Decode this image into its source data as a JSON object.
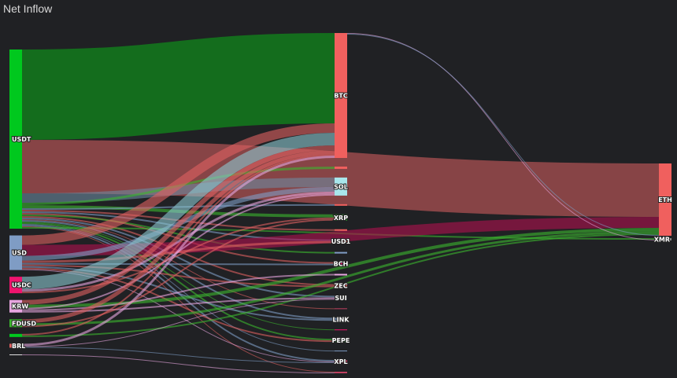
{
  "title": "Net Inflow",
  "chart_data": {
    "type": "sankey",
    "title": "Net Inflow",
    "nodes": [
      {
        "id": "USDT",
        "label": "USDT",
        "col": 0,
        "color": "#00c81e"
      },
      {
        "id": "USD",
        "label": "USD",
        "col": 0,
        "color": "#7f9cc4"
      },
      {
        "id": "USDC",
        "label": "USDC",
        "col": 0,
        "color": "#f0146e"
      },
      {
        "id": "KRW",
        "label": "KRW",
        "col": 0,
        "color": "#e8a6e0"
      },
      {
        "id": "FDUSD",
        "label": "FDUSD",
        "col": 0,
        "color": "#3cb82e"
      },
      {
        "id": "G1",
        "label": "",
        "col": 0,
        "color": "#00c81e"
      },
      {
        "id": "BRL",
        "label": "BRL",
        "col": 0,
        "color": "#e06060"
      },
      {
        "id": "W1",
        "label": "",
        "col": 0,
        "color": "#e0e0e0"
      },
      {
        "id": "BTC",
        "label": "BTC",
        "col": 1,
        "color": "#f0605e"
      },
      {
        "id": "M1",
        "label": "",
        "col": 1,
        "color": "#f0605e"
      },
      {
        "id": "SOL",
        "label": "SOL",
        "col": 1,
        "color": "#a8e6ec"
      },
      {
        "id": "M2",
        "label": "",
        "col": 1,
        "color": "#f0605e"
      },
      {
        "id": "XRP",
        "label": "XRP",
        "col": 1,
        "color": "#2d8a2d"
      },
      {
        "id": "M3",
        "label": "",
        "col": 1,
        "color": "#f0605e"
      },
      {
        "id": "USD1",
        "label": "USD1",
        "col": 1,
        "color": "#f0605e"
      },
      {
        "id": "M4",
        "label": "",
        "col": 1,
        "color": "#7f9cc4"
      },
      {
        "id": "BCH",
        "label": "BCH",
        "col": 1,
        "color": "#f0146e"
      },
      {
        "id": "M5",
        "label": "",
        "col": 1,
        "color": "#e8a6e0"
      },
      {
        "id": "ZEC",
        "label": "ZEC",
        "col": 1,
        "color": "#f0605e"
      },
      {
        "id": "SUI",
        "label": "SUI",
        "col": 1,
        "color": "#7f9cc4"
      },
      {
        "id": "M6",
        "label": "",
        "col": 1,
        "color": "#c04060"
      },
      {
        "id": "LINK",
        "label": "LINK",
        "col": 1,
        "color": "#7f9cc4"
      },
      {
        "id": "M7",
        "label": "",
        "col": 1,
        "color": "#f0146e"
      },
      {
        "id": "PEPE",
        "label": "PEPE",
        "col": 1,
        "color": "#2d8a2d"
      },
      {
        "id": "M8",
        "label": "",
        "col": 1,
        "color": "#7f9cc4"
      },
      {
        "id": "XPL",
        "label": "XPL",
        "col": 1,
        "color": "#c04060"
      },
      {
        "id": "M9",
        "label": "",
        "col": 1,
        "color": "#c04060"
      },
      {
        "id": "ETH",
        "label": "ETH",
        "col": 2,
        "color": "#f0605e"
      },
      {
        "id": "XMR",
        "label": "XMR",
        "col": 2,
        "color": "#888888"
      }
    ],
    "links": [
      {
        "s": "USDT",
        "t": "BTC",
        "v": 115,
        "c": "#137a1c"
      },
      {
        "s": "USDT",
        "t": "ETH",
        "v": 68,
        "c": "#9a4a4c"
      },
      {
        "s": "USDT",
        "t": "SOL",
        "v": 12,
        "c": "#6d8aa0"
      },
      {
        "s": "USDT",
        "t": "M1",
        "v": 3,
        "c": "#3cb82e"
      },
      {
        "s": "USDT",
        "t": "XRP",
        "v": 4,
        "c": "#3cb82e"
      },
      {
        "s": "USDT",
        "t": "M2",
        "v": 2,
        "c": "#7f9cc4"
      },
      {
        "s": "USDT",
        "t": "M3",
        "v": 2,
        "c": "#e06060"
      },
      {
        "s": "USDT",
        "t": "USD1",
        "v": 2,
        "c": "#7f9cc4"
      },
      {
        "s": "USDT",
        "t": "BCH",
        "v": 2,
        "c": "#e06060"
      },
      {
        "s": "USDT",
        "t": "M4",
        "v": 2,
        "c": "#3cb82e"
      },
      {
        "s": "USDT",
        "t": "ZEC",
        "v": 2,
        "c": "#e06060"
      },
      {
        "s": "USDT",
        "t": "SUI",
        "v": 2,
        "c": "#7f9cc4"
      },
      {
        "s": "USDT",
        "t": "M6",
        "v": 1,
        "c": "#e06060"
      },
      {
        "s": "USDT",
        "t": "LINK",
        "v": 2,
        "c": "#7f9cc4"
      },
      {
        "s": "USDT",
        "t": "M7",
        "v": 1,
        "c": "#3cb82e"
      },
      {
        "s": "USDT",
        "t": "PEPE",
        "v": 2,
        "c": "#3cb82e"
      },
      {
        "s": "USDT",
        "t": "M8",
        "v": 1,
        "c": "#7f9cc4"
      },
      {
        "s": "USDT",
        "t": "XPL",
        "v": 2,
        "c": "#7f9cc4"
      },
      {
        "s": "USDT",
        "t": "M9",
        "v": 1,
        "c": "#e06060"
      },
      {
        "s": "USDT",
        "t": "XMR",
        "v": 2,
        "c": "#3cb82e"
      },
      {
        "s": "USD",
        "t": "BTC",
        "v": 12,
        "c": "#e06060"
      },
      {
        "s": "USD",
        "t": "ETH",
        "v": 14,
        "c": "#b0104e"
      },
      {
        "s": "USD",
        "t": "SOL",
        "v": 6,
        "c": "#7f9cc4"
      },
      {
        "s": "USD",
        "t": "USD1",
        "v": 3,
        "c": "#e06060"
      },
      {
        "s": "USD",
        "t": "BCH",
        "v": 2,
        "c": "#7f9cc4"
      },
      {
        "s": "USD",
        "t": "ZEC",
        "v": 2,
        "c": "#e06060"
      },
      {
        "s": "USD",
        "t": "LINK",
        "v": 2,
        "c": "#7f9cc4"
      },
      {
        "s": "USD",
        "t": "PEPE",
        "v": 2,
        "c": "#e06060"
      },
      {
        "s": "USD",
        "t": "XPL",
        "v": 1,
        "c": "#e8a6e0"
      },
      {
        "s": "USDC",
        "t": "BTC",
        "v": 16,
        "c": "#8cc8d0"
      },
      {
        "s": "USDC",
        "t": "SOL",
        "v": 3,
        "c": "#e8a6e0"
      },
      {
        "s": "USDC",
        "t": "XRP",
        "v": 2,
        "c": "#e06060"
      },
      {
        "s": "KRW",
        "t": "BTC",
        "v": 6,
        "c": "#e06060"
      },
      {
        "s": "KRW",
        "t": "ETH",
        "v": 4,
        "c": "#3cb82e"
      },
      {
        "s": "KRW",
        "t": "SOL",
        "v": 2,
        "c": "#e8a6e0"
      },
      {
        "s": "KRW",
        "t": "M5",
        "v": 2,
        "c": "#e8a6e0"
      },
      {
        "s": "KRW",
        "t": "SUI",
        "v": 2,
        "c": "#e8a6e0"
      },
      {
        "s": "FDUSD",
        "t": "BTC",
        "v": 5,
        "c": "#e06060"
      },
      {
        "s": "FDUSD",
        "t": "ETH",
        "v": 3,
        "c": "#3cb82e"
      },
      {
        "s": "FDUSD",
        "t": "XRP",
        "v": 2,
        "c": "#e06060"
      },
      {
        "s": "G1",
        "t": "BTC",
        "v": 2,
        "c": "#e06060"
      },
      {
        "s": "G1",
        "t": "ETH",
        "v": 2,
        "c": "#3cb82e"
      },
      {
        "s": "BRL",
        "t": "BTC",
        "v": 3,
        "c": "#e8a6e0"
      },
      {
        "s": "BRL",
        "t": "SUI",
        "v": 1,
        "c": "#e8a6e0"
      },
      {
        "s": "BRL",
        "t": "XPL",
        "v": 1,
        "c": "#7f9cc4"
      },
      {
        "s": "W1",
        "t": "M9",
        "v": 1,
        "c": "#e8a6e0"
      },
      {
        "s": "BTC",
        "t": "XMR",
        "v": 1,
        "c": "#e8a6e0"
      },
      {
        "s": "BTC",
        "t": "ETH",
        "v": 1,
        "c": "#7f9cc4"
      }
    ]
  }
}
